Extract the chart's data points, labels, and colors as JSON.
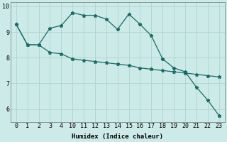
{
  "xlabel": "Humidex (Indice chaleur)",
  "background_color": "#cceae7",
  "grid_color": "#aed4d1",
  "line_color": "#1a6b66",
  "x_labels": [
    "0",
    "1",
    "2",
    "3",
    "4",
    "10",
    "11",
    "12",
    "13",
    "14",
    "15",
    "16",
    "17",
    "18",
    "19",
    "20",
    "21",
    "22",
    "23"
  ],
  "line1_y": [
    9.3,
    8.5,
    8.5,
    9.15,
    9.25,
    9.75,
    9.65,
    9.65,
    9.5,
    9.1,
    9.7,
    9.3,
    8.85,
    7.95,
    7.6,
    7.45,
    6.85,
    6.35,
    5.75
  ],
  "line2_y": [
    9.3,
    8.5,
    8.5,
    8.2,
    8.15,
    7.95,
    7.9,
    7.85,
    7.8,
    7.75,
    7.7,
    7.6,
    7.55,
    7.5,
    7.45,
    7.4,
    7.35,
    7.3,
    7.25
  ],
  "ylim": [
    5.5,
    10.15
  ],
  "yticks": [
    6,
    7,
    8,
    9,
    10
  ],
  "marker": "*",
  "marker_size": 3.5,
  "linewidth": 0.9,
  "xlabel_fontsize": 6.5,
  "tick_fontsize": 6
}
